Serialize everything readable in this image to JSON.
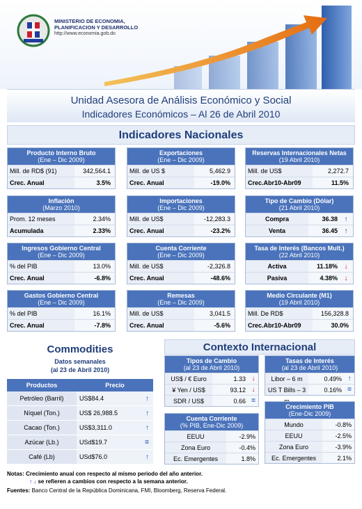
{
  "header": {
    "ministry_line1": "MINISTERIO DE ECONOMIA,",
    "ministry_line2": "PLANIFICACION Y DESARROLLO",
    "url": "http://www.economia.gob.do"
  },
  "title": {
    "line1": "Unidad Asesora de Análisis Económico y Social",
    "line2": "Indicadores Económicos – Al  26 de Abril 2010"
  },
  "nacionales_title": "Indicadores Nacionales",
  "boxes": [
    {
      "title": "Producto Interno  Bruto",
      "sub": "(Ene – Dic 2009)",
      "rows": [
        {
          "k": "Mill. de RD$ (91)",
          "v": "342,564.1"
        },
        {
          "k": "Crec. Anual",
          "v": "3.5%"
        }
      ]
    },
    {
      "title": "Exportaciones",
      "sub": "(Ene – Dic 2009)",
      "rows": [
        {
          "k": "Mill. de US $",
          "v": "5,462.9"
        },
        {
          "k": "Crec. Anual",
          "v": "-19.0%"
        }
      ]
    },
    {
      "title": "Reservas Internacionales Netas",
      "sub": "(19 Abril 2010)",
      "rows": [
        {
          "k": "Mill. de US$",
          "v": "2,272.7"
        },
        {
          "k": "Crec.Abr10-Abr09",
          "v": "11.5%"
        }
      ]
    },
    {
      "title": "Inflación",
      "sub": "(Marzo 2010)",
      "rows": [
        {
          "k": "Prom. 12 meses",
          "v": "2.34%"
        },
        {
          "k": "Acumulada",
          "v": "2.33%"
        }
      ]
    },
    {
      "title": "Importaciones",
      "sub": "(Ene – Dic 2009)",
      "rows": [
        {
          "k": "Mill. de US$",
          "v": "-12,283.3"
        },
        {
          "k": "Crec. Anual",
          "v": "-23.2%"
        }
      ]
    },
    {
      "title": "Tipo de Cambio (Dólar)",
      "sub": "(21 Abril 2010)",
      "rows": [
        {
          "k": "Compra",
          "v": "36.38",
          "arrow": "↑"
        },
        {
          "k": "Venta",
          "v": "36.45",
          "arrow": "↑"
        }
      ]
    },
    {
      "title": "Ingresos Gobierno Central",
      "sub": "(Ene – Dic 2009)",
      "rows": [
        {
          "k": "% del PIB",
          "v": "13.0%"
        },
        {
          "k": "Crec. Anual",
          "v": "-6.8%"
        }
      ]
    },
    {
      "title": "Cuenta Corriente",
      "sub": "(Ene – Dic 2009)",
      "rows": [
        {
          "k": "Mill. de US$",
          "v": "-2,326.8"
        },
        {
          "k": "Crec. Anual",
          "v": "-48.6%"
        }
      ]
    },
    {
      "title": "Tasa de Interés (Bancos Mult.)",
      "sub": "(22 Abril 2010)",
      "rows": [
        {
          "k": "Activa",
          "v": "11.18%",
          "arrow": "↓"
        },
        {
          "k": "Pasiva",
          "v": "4.38%",
          "arrow": "↓"
        }
      ]
    },
    {
      "title": "Gastos Gobierno Central",
      "sub": "(Ene – Dic 2009)",
      "rows": [
        {
          "k": "% del PIB",
          "v": "16.1%"
        },
        {
          "k": "Crec. Anual",
          "v": "-7.8%"
        }
      ]
    },
    {
      "title": "Remesas",
      "sub": "(Ene – Dic  2009)",
      "rows": [
        {
          "k": "Mill. de US$",
          "v": "3,041.5"
        },
        {
          "k": "Crec. Anual",
          "v": "-5.6%"
        }
      ]
    },
    {
      "title": "Medio Circulante (M1)",
      "sub": "(19 Abril 2010)",
      "rows": [
        {
          "k": "Mill. De RD$",
          "v": "156,328.8"
        },
        {
          "k": "Crec.Abr10-Abr09",
          "v": "30.0%"
        }
      ]
    }
  ],
  "commodities": {
    "title": "Commodities",
    "sub1": "Datos semanales",
    "sub2": "(al 23 de Abril 2010)",
    "col_products": "Productos",
    "col_price": "Precio",
    "rows": [
      {
        "p": "Petróleo (Barril)",
        "v": "US$84.4",
        "arrow": "↑"
      },
      {
        "p": "Níquel (Ton.)",
        "v": "US$ 26,988.5",
        "arrow": "↑"
      },
      {
        "p": "Cacao (Ton.)",
        "v": "US$3,311.0",
        "arrow": "↑"
      },
      {
        "p": "Azúcar (Lb.)",
        "v": "USd$19.7",
        "arrow": "="
      },
      {
        "p": "Café (Lb)",
        "v": "USd$76.0",
        "arrow": "↑"
      }
    ]
  },
  "contexto": {
    "title": "Contexto Internacional",
    "tipos": {
      "title": "Tipos de Cambio",
      "sub": "(al 23 de Abril 2010)",
      "rows": [
        {
          "k": "US$ / € Euro",
          "v": "1.33",
          "arrow": "↓"
        },
        {
          "k": "¥ Yen / US$",
          "v": "93.12",
          "arrow": "↓"
        },
        {
          "k": "SDR / US$",
          "v": "0.66",
          "arrow": "="
        }
      ]
    },
    "tasas": {
      "title": "Tasas de Interés",
      "sub": "(al 23 de Abril 2010)",
      "rows": [
        {
          "k": "Libor – 6 m",
          "v": "0.49%",
          "arrow": "↑"
        },
        {
          "k": "US T Bills – 3 m",
          "v": "0.16%",
          "arrow": "="
        }
      ]
    },
    "cuenta": {
      "title": "Cuenta Corriente",
      "sub": "(% PIB, Ene-Dic 2009)",
      "rows": [
        {
          "k": "EEUU",
          "v": "-2.9%"
        },
        {
          "k": "Zona Euro",
          "v": "-0.4%"
        },
        {
          "k": "Ec. Emergentes",
          "v": "1.8%"
        }
      ]
    },
    "pib": {
      "title": "Crecimiento PIB",
      "sub": "(Ene-Dic 2009)",
      "rows": [
        {
          "k": "Mundo",
          "v": "-0.8%"
        },
        {
          "k": "EEUU",
          "v": "-2.5%"
        },
        {
          "k": "Zona Euro",
          "v": "-3.9%"
        },
        {
          "k": "Ec. Emergentes",
          "v": "2.1%"
        }
      ]
    }
  },
  "notes": {
    "label": "Notas:",
    "line1": "Crecimiento anual con respecto al mismo periodo del año anterior.",
    "arrows": "↑ ↓",
    "line2": "se refieren a cambios con respecto a la semana anterior.",
    "sources_label": "Fuentes:",
    "sources": "Banco Central de la República Dominicana, FMI, Bloomberg, Reserva Federal."
  }
}
